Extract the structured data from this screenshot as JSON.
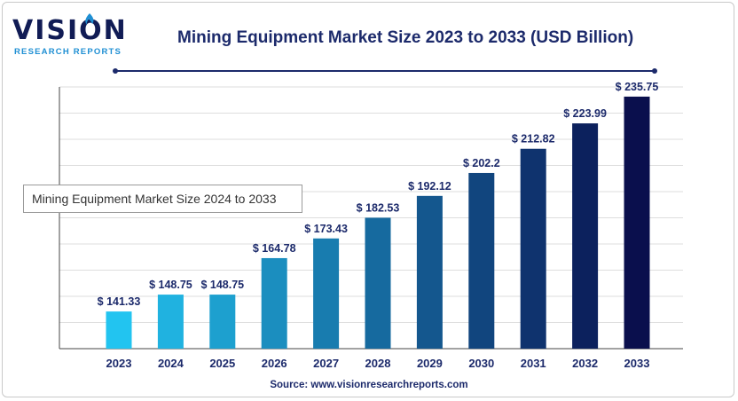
{
  "header": {
    "logo_word": "VISION",
    "logo_sub": "RESEARCH REPORTS",
    "title": "Mining Equipment Market Size 2023 to 2033 (USD Billion)"
  },
  "tooltip": {
    "text": "Mining Equipment Market Size 2024 to 2033"
  },
  "footer": {
    "source": "Source: www.visionresearchreports.com"
  },
  "colors": {
    "accent": "#1c2a6b",
    "bar_start": "#22c4f0",
    "bar_end": "#0a0f4d",
    "logo_blue": "#1f8fd3"
  },
  "chart_data": {
    "type": "bar",
    "title": "Mining Equipment Market Size 2023 to 2033 (USD Billion)",
    "categories": [
      "2023",
      "2024",
      "2025",
      "2026",
      "2027",
      "2028",
      "2029",
      "2030",
      "2031",
      "2032",
      "2033"
    ],
    "values": [
      141.33,
      148.75,
      148.75,
      164.78,
      173.43,
      182.53,
      192.12,
      202.2,
      212.82,
      223.99,
      235.75
    ],
    "data_labels": [
      "$ 141.33",
      "$ 148.75",
      "$ 148.75",
      "$ 164.78",
      "$ 173.43",
      "$ 182.53",
      "$ 192.12",
      "$ 202.2",
      "$ 212.82",
      "$ 223.99",
      "$ 235.75"
    ],
    "xlabel": "",
    "ylabel": "",
    "ylim": [
      125,
      240
    ],
    "grid": true,
    "legend": "none"
  }
}
